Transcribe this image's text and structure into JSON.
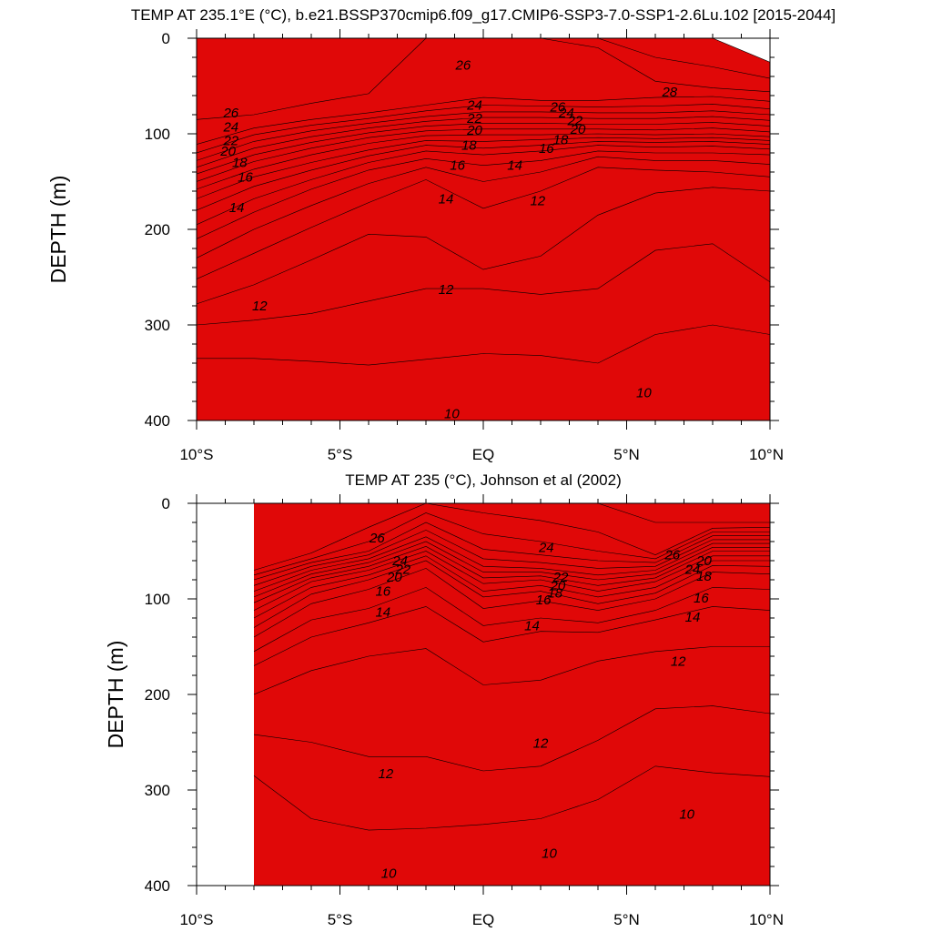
{
  "chart_data": [
    {
      "type": "heatmap",
      "subtype": "filled-contour",
      "title": "TEMP AT 235.1°E (°C), b.e21.BSSP370cmip6.f09_g17.CMIP6-SSP3-7.0-SSP1-2.6Lu.102 [2015-2044]",
      "xlabel": "",
      "ylabel": "DEPTH (m)",
      "xlim": [
        -10,
        10
      ],
      "ylim": [
        400,
        0
      ],
      "y_inverted": true,
      "x_ticks": [
        -10,
        -5,
        0,
        5,
        10
      ],
      "x_tick_labels": [
        "10°S",
        "5°S",
        "EQ",
        "5°N",
        "10°N"
      ],
      "y_ticks": [
        0,
        100,
        200,
        300,
        400
      ],
      "y_tick_labels": [
        "0",
        "100",
        "200",
        "300",
        "400"
      ],
      "x_data_start": -10,
      "contour_levels": [
        10,
        11,
        12,
        13,
        14,
        15,
        16,
        17,
        18,
        19,
        20,
        21,
        22,
        23,
        24,
        25,
        26,
        27,
        28,
        29
      ],
      "level_colors": [
        "#1a60f0",
        "#1e8af8",
        "#12b0fc",
        "#08d0fc",
        "#30e4fc",
        "#10f4ec",
        "#14f0b0",
        "#26ee5c",
        "#1cde1c",
        "#8cf020",
        "#ccf020",
        "#f8f820",
        "#fce028",
        "#fcc030",
        "#fca43c",
        "#f99030",
        "#f27c06",
        "#f65304",
        "#ff2a0c",
        "#e00808"
      ],
      "sections_x": [
        -10,
        -8,
        -6,
        -4,
        -2,
        0,
        2,
        4,
        6,
        8,
        10
      ],
      "isotherm_depths": {
        "10": [
          370,
          372,
          378,
          390,
          400,
          395,
          395,
          400,
          375,
          355,
          360
        ],
        "11": [
          335,
          335,
          338,
          342,
          336,
          330,
          332,
          340,
          310,
          300,
          310
        ],
        "12": [
          300,
          295,
          288,
          275,
          262,
          262,
          268,
          262,
          222,
          215,
          255
        ],
        "13": [
          278,
          258,
          232,
          205,
          208,
          242,
          228,
          185,
          162,
          156,
          160
        ],
        "14": [
          252,
          225,
          198,
          172,
          148,
          178,
          160,
          135,
          138,
          140,
          145
        ],
        "15": [
          230,
          200,
          175,
          152,
          135,
          150,
          140,
          124,
          128,
          128,
          132
        ],
        "16": [
          210,
          182,
          158,
          138,
          126,
          133,
          128,
          118,
          120,
          120,
          122
        ],
        "17": [
          195,
          168,
          148,
          130,
          118,
          122,
          118,
          112,
          114,
          113,
          116
        ],
        "18": [
          180,
          155,
          138,
          123,
          112,
          115,
          112,
          108,
          109,
          108,
          111
        ],
        "19": [
          168,
          145,
          130,
          117,
          107,
          108,
          106,
          104,
          105,
          104,
          107
        ],
        "20": [
          158,
          137,
          122,
          110,
          102,
          101,
          101,
          100,
          101,
          100,
          103
        ],
        "21": [
          150,
          129,
          115,
          104,
          97,
          95,
          95,
          95,
          96,
          94,
          98
        ],
        "22": [
          142,
          122,
          109,
          99,
          92,
          89,
          89,
          90,
          90,
          88,
          92
        ],
        "23": [
          135,
          115,
          103,
          94,
          87,
          83,
          83,
          84,
          84,
          82,
          86
        ],
        "24": [
          128,
          108,
          97,
          89,
          82,
          77,
          77,
          78,
          78,
          76,
          80
        ],
        "25": [
          120,
          101,
          91,
          84,
          76,
          70,
          71,
          72,
          71,
          69,
          74
        ],
        "26": [
          111,
          94,
          85,
          78,
          70,
          62,
          65,
          65,
          62,
          61,
          66
        ],
        "27": [
          85,
          80,
          68,
          58,
          0,
          0,
          0,
          10,
          45,
          52,
          56
        ],
        "28": [
          0,
          0,
          0,
          0,
          0,
          0,
          0,
          0,
          20,
          30,
          42
        ],
        "29": [
          0,
          0,
          0,
          0,
          0,
          0,
          0,
          0,
          0,
          0,
          25
        ]
      },
      "contour_labels": [
        {
          "text": "26",
          "x": -8.8,
          "y": 78
        },
        {
          "text": "24",
          "x": -8.8,
          "y": 93
        },
        {
          "text": "22",
          "x": -8.8,
          "y": 107
        },
        {
          "text": "20",
          "x": -8.9,
          "y": 118
        },
        {
          "text": "18",
          "x": -8.5,
          "y": 130
        },
        {
          "text": "16",
          "x": -8.3,
          "y": 145
        },
        {
          "text": "14",
          "x": -8.6,
          "y": 177
        },
        {
          "text": "12",
          "x": -7.8,
          "y": 280
        },
        {
          "text": "26",
          "x": -0.7,
          "y": 28
        },
        {
          "text": "24",
          "x": -0.3,
          "y": 70
        },
        {
          "text": "22",
          "x": -0.3,
          "y": 84
        },
        {
          "text": "20",
          "x": -0.3,
          "y": 96
        },
        {
          "text": "18",
          "x": -0.5,
          "y": 112
        },
        {
          "text": "16",
          "x": -0.9,
          "y": 133
        },
        {
          "text": "14",
          "x": -1.3,
          "y": 168
        },
        {
          "text": "12",
          "x": -1.3,
          "y": 263
        },
        {
          "text": "10",
          "x": -1.1,
          "y": 393
        },
        {
          "text": "28",
          "x": 6.5,
          "y": 56
        },
        {
          "text": "26",
          "x": 2.6,
          "y": 72
        },
        {
          "text": "24",
          "x": 2.9,
          "y": 78
        },
        {
          "text": "22",
          "x": 3.2,
          "y": 86
        },
        {
          "text": "20",
          "x": 3.3,
          "y": 95
        },
        {
          "text": "18",
          "x": 2.7,
          "y": 106
        },
        {
          "text": "16",
          "x": 2.2,
          "y": 115
        },
        {
          "text": "14",
          "x": 1.1,
          "y": 133
        },
        {
          "text": "12",
          "x": 1.9,
          "y": 170
        },
        {
          "text": "10",
          "x": 5.6,
          "y": 371
        }
      ]
    },
    {
      "type": "heatmap",
      "subtype": "filled-contour",
      "title": "TEMP AT 235 (°C), Johnson et al (2002)",
      "xlabel": "",
      "ylabel": "DEPTH (m)",
      "xlim": [
        -10,
        10
      ],
      "ylim": [
        400,
        0
      ],
      "y_inverted": true,
      "x_ticks": [
        -10,
        -5,
        0,
        5,
        10
      ],
      "x_tick_labels": [
        "10°S",
        "5°S",
        "EQ",
        "5°N",
        "10°N"
      ],
      "y_ticks": [
        0,
        100,
        200,
        300,
        400
      ],
      "y_tick_labels": [
        "0",
        "100",
        "200",
        "300",
        "400"
      ],
      "x_data_start": -8,
      "contour_levels": [
        10,
        11,
        12,
        13,
        14,
        15,
        16,
        17,
        18,
        19,
        20,
        21,
        22,
        23,
        24,
        25,
        26,
        27,
        28,
        29
      ],
      "level_colors": [
        "#1a60f0",
        "#1e8af8",
        "#12b0fc",
        "#08d0fc",
        "#30e4fc",
        "#10f4ec",
        "#14f0b0",
        "#26ee5c",
        "#1cde1c",
        "#8cf020",
        "#ccf020",
        "#f8f820",
        "#fce028",
        "#fcc030",
        "#fca43c",
        "#f99030",
        "#f27c06",
        "#f65304",
        "#ff2a0c",
        "#e00808"
      ],
      "sections_x": [
        -8,
        -6,
        -4,
        -2,
        0,
        2,
        4,
        6,
        8,
        10
      ],
      "isotherm_depths": {
        "10": [
          345,
          375,
          385,
          382,
          370,
          368,
          360,
          300,
          318,
          322
        ],
        "11": [
          285,
          330,
          342,
          340,
          336,
          330,
          310,
          275,
          282,
          286
        ],
        "12": [
          242,
          250,
          265,
          265,
          280,
          275,
          248,
          215,
          212,
          220
        ],
        "13": [
          200,
          175,
          160,
          152,
          190,
          185,
          165,
          155,
          150,
          150
        ],
        "14": [
          170,
          140,
          125,
          108,
          145,
          134,
          135,
          122,
          108,
          112
        ],
        "15": [
          155,
          122,
          110,
          88,
          128,
          120,
          125,
          112,
          88,
          90
        ],
        "16": [
          140,
          105,
          90,
          68,
          110,
          102,
          112,
          100,
          72,
          74
        ],
        "17": [
          130,
          95,
          80,
          60,
          98,
          92,
          105,
          94,
          65,
          66
        ],
        "18": [
          120,
          88,
          75,
          55,
          92,
          86,
          98,
          88,
          60,
          60
        ],
        "19": [
          112,
          82,
          70,
          50,
          84,
          80,
          92,
          82,
          55,
          55
        ],
        "20": [
          104,
          78,
          66,
          45,
          78,
          76,
          86,
          78,
          50,
          50
        ],
        "21": [
          98,
          74,
          62,
          40,
          72,
          72,
          80,
          74,
          46,
          46
        ],
        "22": [
          92,
          70,
          58,
          35,
          66,
          68,
          75,
          70,
          42,
          42
        ],
        "23": [
          86,
          66,
          54,
          28,
          58,
          62,
          68,
          66,
          38,
          38
        ],
        "24": [
          80,
          62,
          50,
          20,
          48,
          54,
          60,
          62,
          34,
          34
        ],
        "25": [
          75,
          58,
          40,
          10,
          32,
          40,
          50,
          58,
          30,
          30
        ],
        "26": [
          70,
          52,
          25,
          0,
          10,
          18,
          30,
          54,
          26,
          25
        ],
        "27": [
          0,
          0,
          0,
          0,
          0,
          0,
          0,
          20,
          20,
          20
        ],
        "28": [
          0,
          0,
          0,
          0,
          0,
          0,
          0,
          0,
          0,
          0
        ],
        "29": [
          0,
          0,
          0,
          0,
          0,
          0,
          0,
          0,
          0,
          0
        ]
      },
      "contour_labels": [
        {
          "text": "26",
          "x": -3.7,
          "y": 36
        },
        {
          "text": "24",
          "x": -2.9,
          "y": 60
        },
        {
          "text": "22",
          "x": -2.8,
          "y": 69
        },
        {
          "text": "20",
          "x": -3.1,
          "y": 77
        },
        {
          "text": "16",
          "x": -3.5,
          "y": 92
        },
        {
          "text": "14",
          "x": -3.5,
          "y": 114
        },
        {
          "text": "12",
          "x": -3.4,
          "y": 283
        },
        {
          "text": "10",
          "x": -3.3,
          "y": 387
        },
        {
          "text": "24",
          "x": 2.2,
          "y": 46
        },
        {
          "text": "22",
          "x": 2.7,
          "y": 77
        },
        {
          "text": "20",
          "x": 2.6,
          "y": 86
        },
        {
          "text": "18",
          "x": 2.5,
          "y": 94
        },
        {
          "text": "16",
          "x": 2.1,
          "y": 101
        },
        {
          "text": "14",
          "x": 1.7,
          "y": 128
        },
        {
          "text": "12",
          "x": 2.0,
          "y": 251
        },
        {
          "text": "10",
          "x": 2.3,
          "y": 366
        },
        {
          "text": "26",
          "x": 6.6,
          "y": 54
        },
        {
          "text": "24",
          "x": 7.3,
          "y": 69
        },
        {
          "text": "20",
          "x": 7.7,
          "y": 60
        },
        {
          "text": "18",
          "x": 7.7,
          "y": 76
        },
        {
          "text": "16",
          "x": 7.6,
          "y": 99
        },
        {
          "text": "14",
          "x": 7.3,
          "y": 119
        },
        {
          "text": "12",
          "x": 6.8,
          "y": 165
        },
        {
          "text": "10",
          "x": 7.1,
          "y": 325
        }
      ]
    }
  ]
}
